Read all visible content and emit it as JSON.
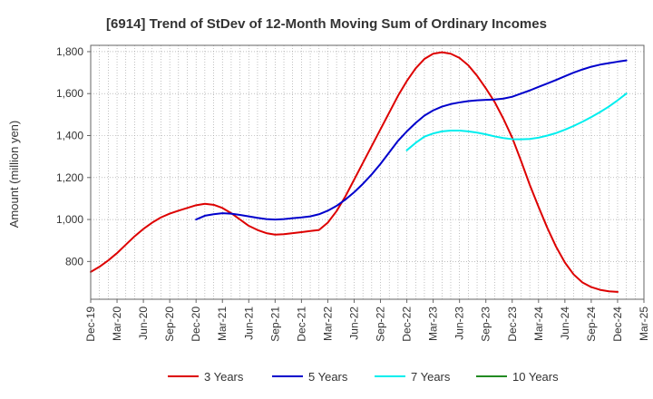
{
  "chart_data": {
    "type": "line",
    "title": "[6914]  Trend of StDev of 12-Month Moving Sum of Ordinary Incomes",
    "xlabel": "",
    "ylabel": "Amount (million yen)",
    "ylim": [
      620,
      1830
    ],
    "yticks": [
      800,
      1000,
      1200,
      1400,
      1600,
      1800
    ],
    "ytick_labels": [
      "800",
      "1,000",
      "1,200",
      "1,400",
      "1,600",
      "1,800"
    ],
    "x_start": "2019-12",
    "x_end": "2025-03",
    "xtick_labels": [
      "Dec-19",
      "Mar-20",
      "Jun-20",
      "Sep-20",
      "Dec-20",
      "Mar-21",
      "Jun-21",
      "Sep-21",
      "Dec-21",
      "Mar-22",
      "Jun-22",
      "Sep-22",
      "Dec-22",
      "Mar-23",
      "Jun-23",
      "Sep-23",
      "Dec-23",
      "Mar-24",
      "Jun-24",
      "Sep-24",
      "Dec-24",
      "Mar-25"
    ],
    "grid": true,
    "legend_position": "bottom",
    "series": [
      {
        "name": "3 Years",
        "color": "#dd0000",
        "points": [
          [
            0,
            750
          ],
          [
            1,
            775
          ],
          [
            2,
            805
          ],
          [
            3,
            840
          ],
          [
            4,
            880
          ],
          [
            5,
            920
          ],
          [
            6,
            955
          ],
          [
            7,
            985
          ],
          [
            8,
            1010
          ],
          [
            9,
            1028
          ],
          [
            10,
            1042
          ],
          [
            11,
            1055
          ],
          [
            12,
            1068
          ],
          [
            13,
            1075
          ],
          [
            14,
            1070
          ],
          [
            15,
            1055
          ],
          [
            16,
            1030
          ],
          [
            17,
            1000
          ],
          [
            18,
            970
          ],
          [
            19,
            950
          ],
          [
            20,
            935
          ],
          [
            21,
            928
          ],
          [
            22,
            930
          ],
          [
            23,
            935
          ],
          [
            24,
            940
          ],
          [
            25,
            945
          ],
          [
            26,
            950
          ],
          [
            27,
            985
          ],
          [
            28,
            1040
          ],
          [
            29,
            1110
          ],
          [
            30,
            1190
          ],
          [
            31,
            1270
          ],
          [
            32,
            1350
          ],
          [
            33,
            1430
          ],
          [
            34,
            1510
          ],
          [
            35,
            1590
          ],
          [
            36,
            1660
          ],
          [
            37,
            1720
          ],
          [
            38,
            1765
          ],
          [
            39,
            1790
          ],
          [
            40,
            1797
          ],
          [
            41,
            1790
          ],
          [
            42,
            1770
          ],
          [
            43,
            1735
          ],
          [
            44,
            1685
          ],
          [
            45,
            1625
          ],
          [
            46,
            1560
          ],
          [
            47,
            1480
          ],
          [
            48,
            1390
          ],
          [
            49,
            1280
          ],
          [
            50,
            1165
          ],
          [
            51,
            1060
          ],
          [
            52,
            960
          ],
          [
            53,
            870
          ],
          [
            54,
            795
          ],
          [
            55,
            738
          ],
          [
            56,
            700
          ],
          [
            57,
            678
          ],
          [
            58,
            665
          ],
          [
            59,
            658
          ],
          [
            60,
            655
          ]
        ]
      },
      {
        "name": "5 Years",
        "color": "#0000cc",
        "points": [
          [
            12,
            1000
          ],
          [
            13,
            1018
          ],
          [
            14,
            1025
          ],
          [
            15,
            1030
          ],
          [
            16,
            1028
          ],
          [
            17,
            1022
          ],
          [
            18,
            1015
          ],
          [
            19,
            1008
          ],
          [
            20,
            1002
          ],
          [
            21,
            1000
          ],
          [
            22,
            1002
          ],
          [
            23,
            1006
          ],
          [
            24,
            1010
          ],
          [
            25,
            1015
          ],
          [
            26,
            1025
          ],
          [
            27,
            1042
          ],
          [
            28,
            1065
          ],
          [
            29,
            1095
          ],
          [
            30,
            1130
          ],
          [
            31,
            1170
          ],
          [
            32,
            1215
          ],
          [
            33,
            1265
          ],
          [
            34,
            1320
          ],
          [
            35,
            1375
          ],
          [
            36,
            1420
          ],
          [
            37,
            1460
          ],
          [
            38,
            1495
          ],
          [
            39,
            1520
          ],
          [
            40,
            1538
          ],
          [
            41,
            1550
          ],
          [
            42,
            1558
          ],
          [
            43,
            1564
          ],
          [
            44,
            1568
          ],
          [
            45,
            1570
          ],
          [
            46,
            1572
          ],
          [
            47,
            1576
          ],
          [
            48,
            1585
          ],
          [
            49,
            1600
          ],
          [
            50,
            1615
          ],
          [
            51,
            1632
          ],
          [
            52,
            1648
          ],
          [
            53,
            1665
          ],
          [
            54,
            1683
          ],
          [
            55,
            1700
          ],
          [
            56,
            1715
          ],
          [
            57,
            1728
          ],
          [
            58,
            1738
          ],
          [
            59,
            1745
          ],
          [
            60,
            1752
          ],
          [
            61,
            1758
          ]
        ]
      },
      {
        "name": "7 Years",
        "color": "#00eeee",
        "points": [
          [
            36,
            1330
          ],
          [
            37,
            1365
          ],
          [
            38,
            1395
          ],
          [
            39,
            1410
          ],
          [
            40,
            1420
          ],
          [
            41,
            1424
          ],
          [
            42,
            1424
          ],
          [
            43,
            1420
          ],
          [
            44,
            1414
          ],
          [
            45,
            1406
          ],
          [
            46,
            1396
          ],
          [
            47,
            1388
          ],
          [
            48,
            1383
          ],
          [
            49,
            1382
          ],
          [
            50,
            1384
          ],
          [
            51,
            1390
          ],
          [
            52,
            1400
          ],
          [
            53,
            1412
          ],
          [
            54,
            1428
          ],
          [
            55,
            1446
          ],
          [
            56,
            1466
          ],
          [
            57,
            1488
          ],
          [
            58,
            1512
          ],
          [
            59,
            1538
          ],
          [
            60,
            1568
          ],
          [
            61,
            1600
          ]
        ]
      },
      {
        "name": "10 Years",
        "color": "#228b22",
        "points": []
      }
    ]
  }
}
